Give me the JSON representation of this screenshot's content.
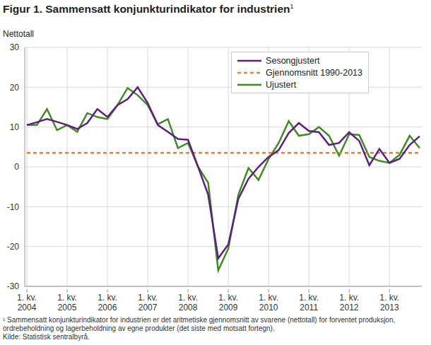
{
  "chart_data": {
    "type": "line",
    "title": "Figur 1. Sammensatt konjunkturindikator for industrien",
    "title_footnote_mark": "1",
    "y_label": "Nettotall",
    "footnote": "¹ Sammensatt konjunkturindikator for industrien er det aritmetiske gjennomsnitt av svarene (nettotall) for forventet produksjon, ordrebeholdning og lagerbeholdning av egne produkter (det siste med motsatt fortegn).",
    "source": "Kilde: Statistisk sentralbyrå.",
    "categories": [
      "1. kv.\n2004",
      null,
      null,
      null,
      "1. kv.\n2005",
      null,
      null,
      null,
      "1. kv.\n2006",
      null,
      null,
      null,
      "1. kv.\n2007",
      null,
      null,
      null,
      "1. kv.\n2008",
      null,
      null,
      null,
      "1. kv.\n2009",
      null,
      null,
      null,
      "1. kv.\n2010",
      null,
      null,
      null,
      "1. kv.\n2011",
      null,
      null,
      null,
      "1. kv.\n2012",
      null,
      null,
      null,
      "1. kv.\n2013",
      null,
      null,
      null
    ],
    "series": [
      {
        "name": "Sesongjustert",
        "color": "#5e1f80",
        "line_style": "solid",
        "values": [
          10.5,
          11.2,
          12.0,
          11.3,
          10.5,
          9.5,
          11.0,
          14.5,
          12.5,
          15.5,
          17.0,
          20.0,
          16.0,
          10.5,
          8.8,
          7.0,
          6.8,
          0.0,
          -7.0,
          -23.0,
          -19.5,
          -8.0,
          -3.0,
          0.0,
          2.5,
          4.2,
          8.5,
          11.0,
          9.0,
          8.7,
          5.5,
          6.0,
          8.7,
          6.5,
          0.4,
          4.5,
          1.0,
          2.0,
          5.5,
          7.7
        ]
      },
      {
        "name": "Gjennomsnitt 1990-2013",
        "color": "#f07d28",
        "line_style": "dashed",
        "values": [
          3.5,
          3.5,
          3.5,
          3.5,
          3.5,
          3.5,
          3.5,
          3.5,
          3.5,
          3.5,
          3.5,
          3.5,
          3.5,
          3.5,
          3.5,
          3.5,
          3.5,
          3.5,
          3.5,
          3.5,
          3.5,
          3.5,
          3.5,
          3.5,
          3.5,
          3.5,
          3.5,
          3.5,
          3.5,
          3.5,
          3.5,
          3.5,
          3.5,
          3.5,
          3.5,
          3.5,
          3.5,
          3.5,
          3.5,
          3.5
        ]
      },
      {
        "name": "Ujustert",
        "color": "#3d8c1f",
        "line_style": "solid",
        "values": [
          10.5,
          10.5,
          14.5,
          9.2,
          10.5,
          8.8,
          13.5,
          12.5,
          12.0,
          15.5,
          19.8,
          18.0,
          15.5,
          10.7,
          12.0,
          4.7,
          6.0,
          0.0,
          -4.0,
          -26.0,
          -20.5,
          -7.0,
          -0.3,
          -3.3,
          2.0,
          6.0,
          11.5,
          7.8,
          8.2,
          10.0,
          7.8,
          2.8,
          8.2,
          8.0,
          2.5,
          1.5,
          1.0,
          3.0,
          7.8,
          4.7
        ]
      }
    ],
    "ylim": [
      -30,
      30
    ],
    "yticks": [
      -30,
      -20,
      -10,
      0,
      10,
      20,
      30
    ],
    "grid": true,
    "legend": "upper right"
  }
}
